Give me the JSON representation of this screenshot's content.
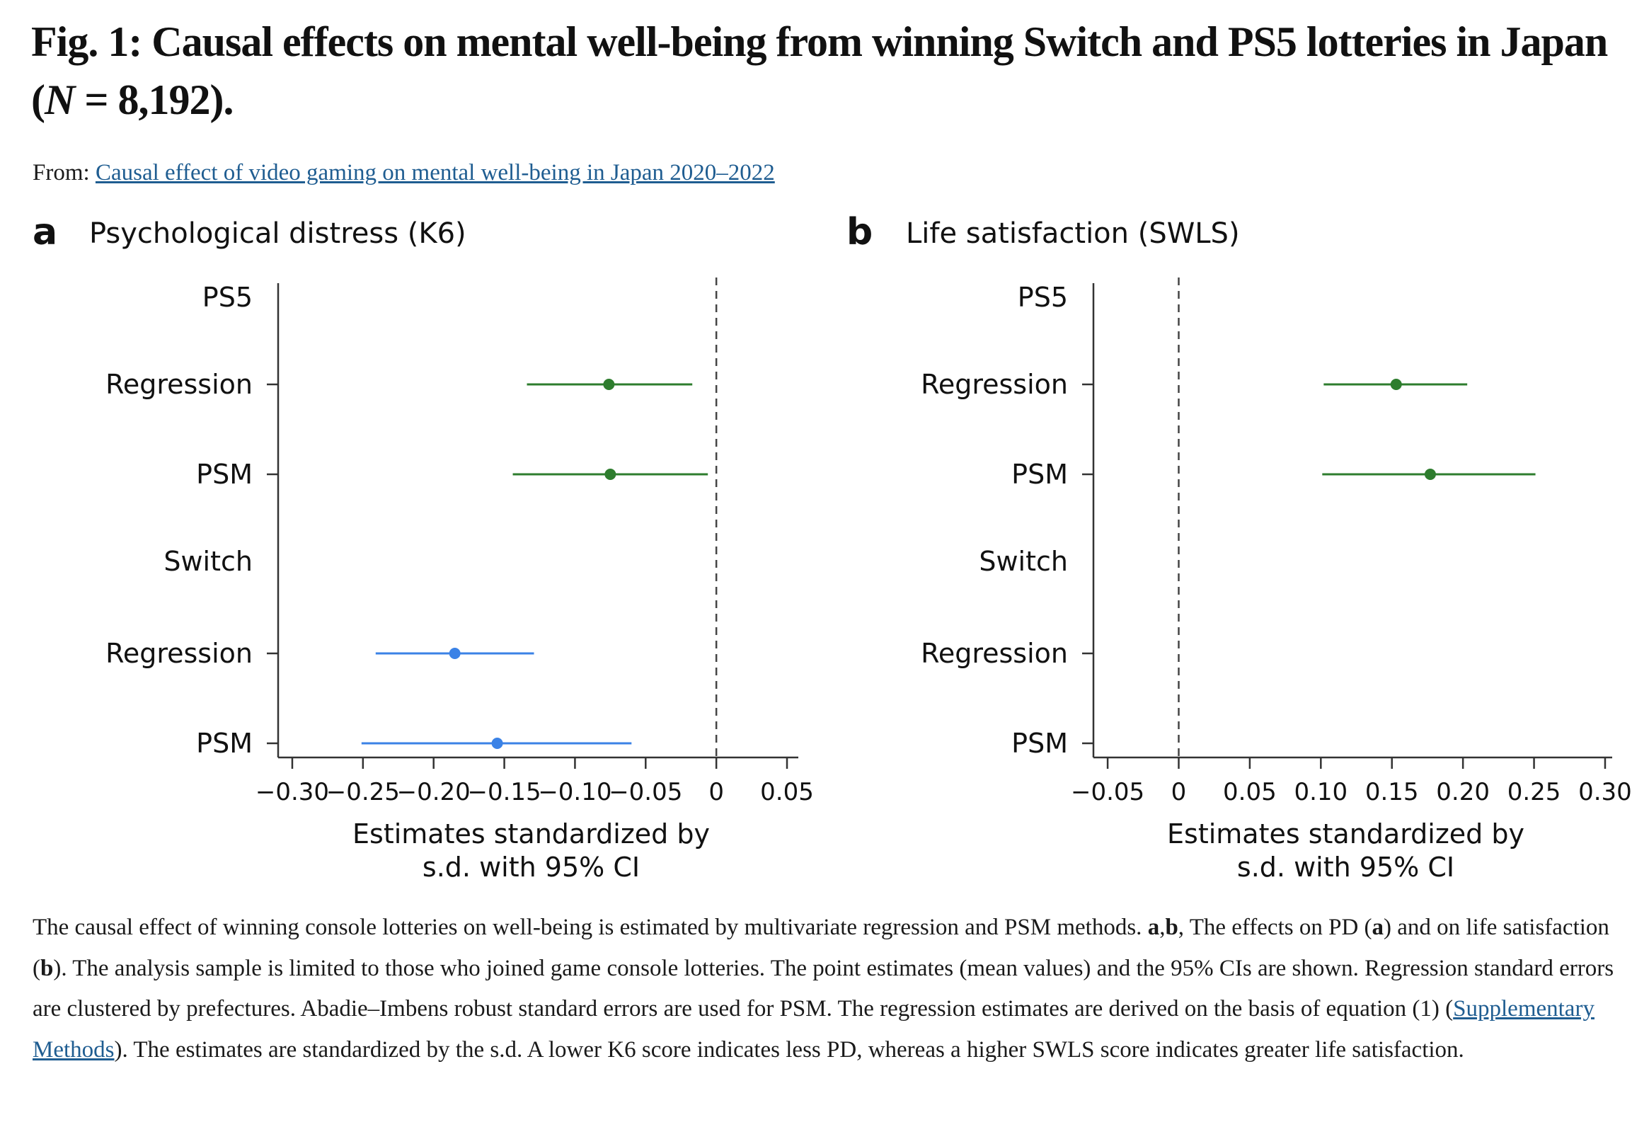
{
  "figure": {
    "title_part1": "Fig. 1: Causal effects on mental well-being from winning Switch and PS5 lotteries in Japan (",
    "title_n": "N",
    "title_part2": " =  8,192).",
    "from_label": "From: ",
    "source_link": "Causal effect of video gaming on mental well-being in Japan 2020–2022"
  },
  "caption": {
    "s1": "The causal effect of winning console lotteries on well-being is estimated by multivariate regression and PSM methods. ",
    "s2": "a",
    "s3": ",",
    "s4": "b",
    "s5": ", The effects on PD (",
    "s6": "a",
    "s7": ") and on life satisfaction (",
    "s8": "b",
    "s9": "). The analysis sample is limited to those who joined game console lotteries. The point estimates (mean values) and the 95% CIs are shown. Regression standard errors are clustered by prefectures. Abadie–Imbens robust standard errors are used for PSM. The regression estimates are derived on the basis of equation (1) (",
    "link": "Supplementary Methods",
    "s10": "). The estimates are standardized by the s.d. A lower K6 score indicates less PD, whereas a higher SWLS score indicates greater life satisfaction."
  },
  "colors": {
    "ps5": "#2e7d2e",
    "switch": "#3b82e6",
    "axis": "#333333",
    "refline": "#444444"
  },
  "chart_data": [
    {
      "panel_letter": "a",
      "type": "scatter",
      "title": "Psychological distress (K6)",
      "row_labels": [
        "PS5",
        "Regression",
        "PSM",
        "Switch",
        "Regression",
        "PSM"
      ],
      "xlim": [
        -0.31,
        0.058
      ],
      "xticks": [
        -0.3,
        -0.25,
        -0.2,
        -0.15,
        -0.1,
        -0.05,
        0,
        0.05
      ],
      "xtick_labels": [
        "−0.30",
        "−0.25",
        "−0.20",
        "−0.15",
        "−0.10",
        "−0.05",
        "0",
        "0.05"
      ],
      "xlabel_line1": "Estimates standardized by",
      "xlabel_line2": "s.d. with 95% CI",
      "reference_line_x": 0,
      "series": [
        {
          "name": "PS5",
          "points": [
            {
              "method": "Regression",
              "row": 1,
              "estimate": -0.076,
              "ci_low": -0.134,
              "ci_high": -0.017
            },
            {
              "method": "PSM",
              "row": 2,
              "estimate": -0.075,
              "ci_low": -0.144,
              "ci_high": -0.006
            }
          ]
        },
        {
          "name": "Switch",
          "points": [
            {
              "method": "Regression",
              "row": 4,
              "estimate": -0.185,
              "ci_low": -0.241,
              "ci_high": -0.129
            },
            {
              "method": "PSM",
              "row": 5,
              "estimate": -0.155,
              "ci_low": -0.251,
              "ci_high": -0.06
            }
          ]
        }
      ]
    },
    {
      "panel_letter": "b",
      "type": "scatter",
      "title": "Life satisfaction (SWLS)",
      "row_labels": [
        "PS5",
        "Regression",
        "PSM",
        "Switch",
        "Regression",
        "PSM"
      ],
      "xlim": [
        -0.06,
        0.305
      ],
      "xticks": [
        -0.05,
        0,
        0.05,
        0.1,
        0.15,
        0.2,
        0.25,
        0.3
      ],
      "xtick_labels": [
        "−0.05",
        "0",
        "0.05",
        "0.10",
        "0.15",
        "0.20",
        "0.25",
        "0.30"
      ],
      "xlabel_line1": "Estimates standardized by",
      "xlabel_line2": "s.d. with 95% CI",
      "reference_line_x": 0,
      "series": [
        {
          "name": "PS5",
          "points": [
            {
              "method": "Regression",
              "row": 1,
              "estimate": 0.153,
              "ci_low": 0.102,
              "ci_high": 0.203
            },
            {
              "method": "PSM",
              "row": 2,
              "estimate": 0.177,
              "ci_low": 0.101,
              "ci_high": 0.251
            }
          ]
        },
        {
          "name": "Switch",
          "points": []
        }
      ]
    }
  ]
}
